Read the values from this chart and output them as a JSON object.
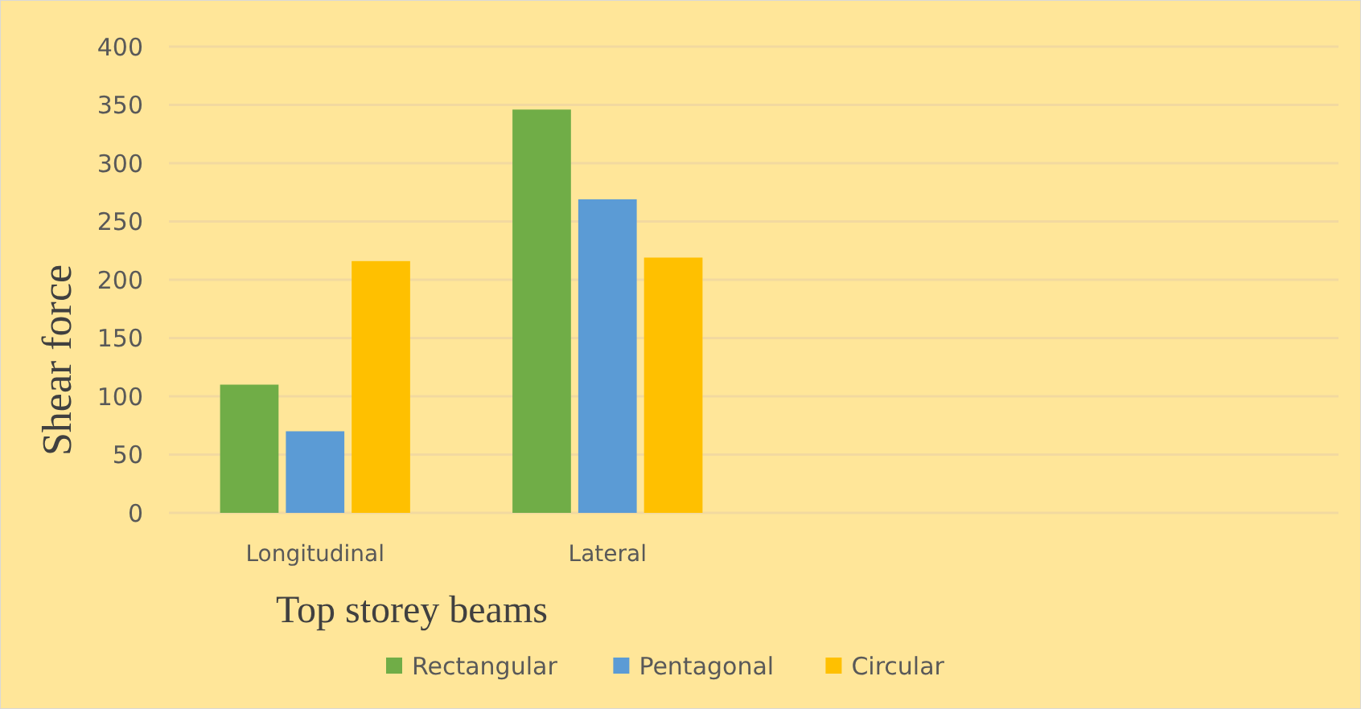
{
  "chart_data": {
    "type": "bar",
    "xlabel": "Top storey beams",
    "ylabel": "Shear force",
    "categories": [
      "Longitudinal",
      "Lateral",
      null,
      null
    ],
    "series": [
      {
        "name": "Rectangular",
        "color": "#70ad47",
        "values": [
          110,
          346,
          null,
          null
        ]
      },
      {
        "name": "Pentagonal",
        "color": "#5b9bd5",
        "values": [
          70,
          269,
          null,
          null
        ]
      },
      {
        "name": "Circular",
        "color": "#ffc000",
        "values": [
          216,
          219,
          null,
          null
        ]
      }
    ],
    "ylim": [
      0,
      400
    ],
    "yticks": [
      0,
      50,
      100,
      150,
      200,
      250,
      300,
      350,
      400
    ],
    "grid": "y",
    "legend": "bottom"
  }
}
